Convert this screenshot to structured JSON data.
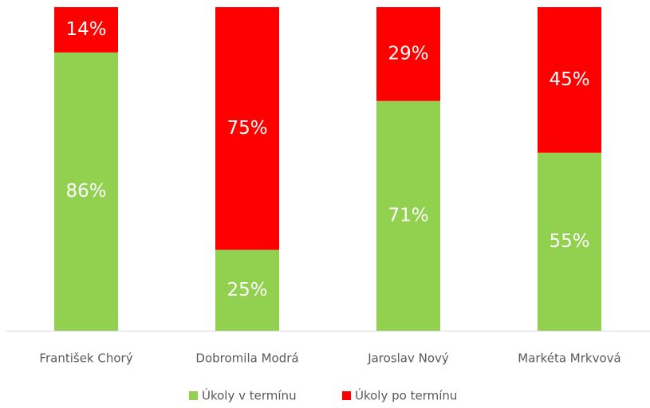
{
  "chart_data": {
    "type": "stacked_bar",
    "categories": [
      "František Chorý",
      "Dobromila Modrá",
      "Jaroslav Nový",
      "Markéta Mrkvová"
    ],
    "series": [
      {
        "name": "Úkoly v termínu",
        "color": "#92d050",
        "values": [
          86,
          25,
          71,
          55
        ],
        "value_labels": [
          "86%",
          "25%",
          "71%",
          "55%"
        ]
      },
      {
        "name": "Úkoly po termínu",
        "color": "#ff0000",
        "values": [
          14,
          75,
          29,
          45
        ],
        "value_labels": [
          "14%",
          "75%",
          "29%",
          "45%"
        ]
      }
    ],
    "ylim": [
      0,
      100
    ],
    "legend": "bottom"
  }
}
